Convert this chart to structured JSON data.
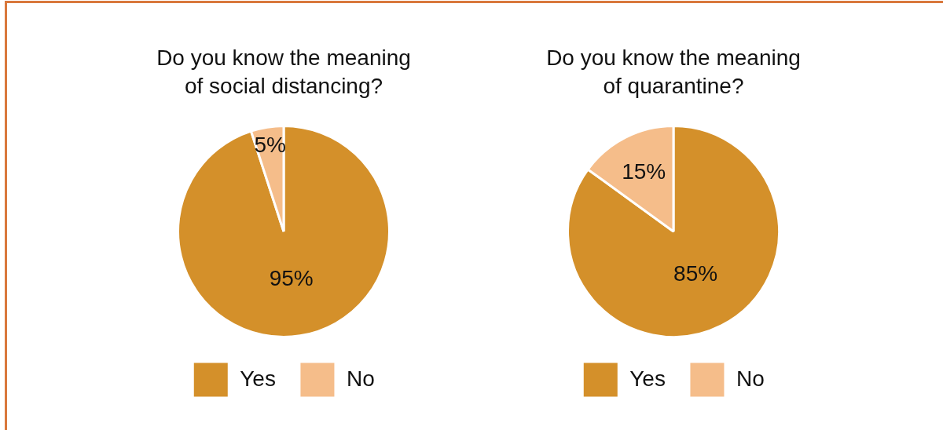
{
  "chart_data": [
    {
      "type": "pie",
      "title": "Do you know the meaning of social distancing?",
      "categories": [
        "Yes",
        "No"
      ],
      "values": [
        95,
        5
      ],
      "colors": [
        "#d4902a",
        "#f5bd8a"
      ],
      "value_labels": [
        "95%",
        "5%"
      ],
      "legend": "bottom"
    },
    {
      "type": "pie",
      "title": "Do you know the meaning of quarantine?",
      "categories": [
        "Yes",
        "No"
      ],
      "values": [
        85,
        15
      ],
      "colors": [
        "#d4902a",
        "#f5bd8a"
      ],
      "value_labels": [
        "85%",
        "15%"
      ],
      "legend": "bottom"
    }
  ]
}
